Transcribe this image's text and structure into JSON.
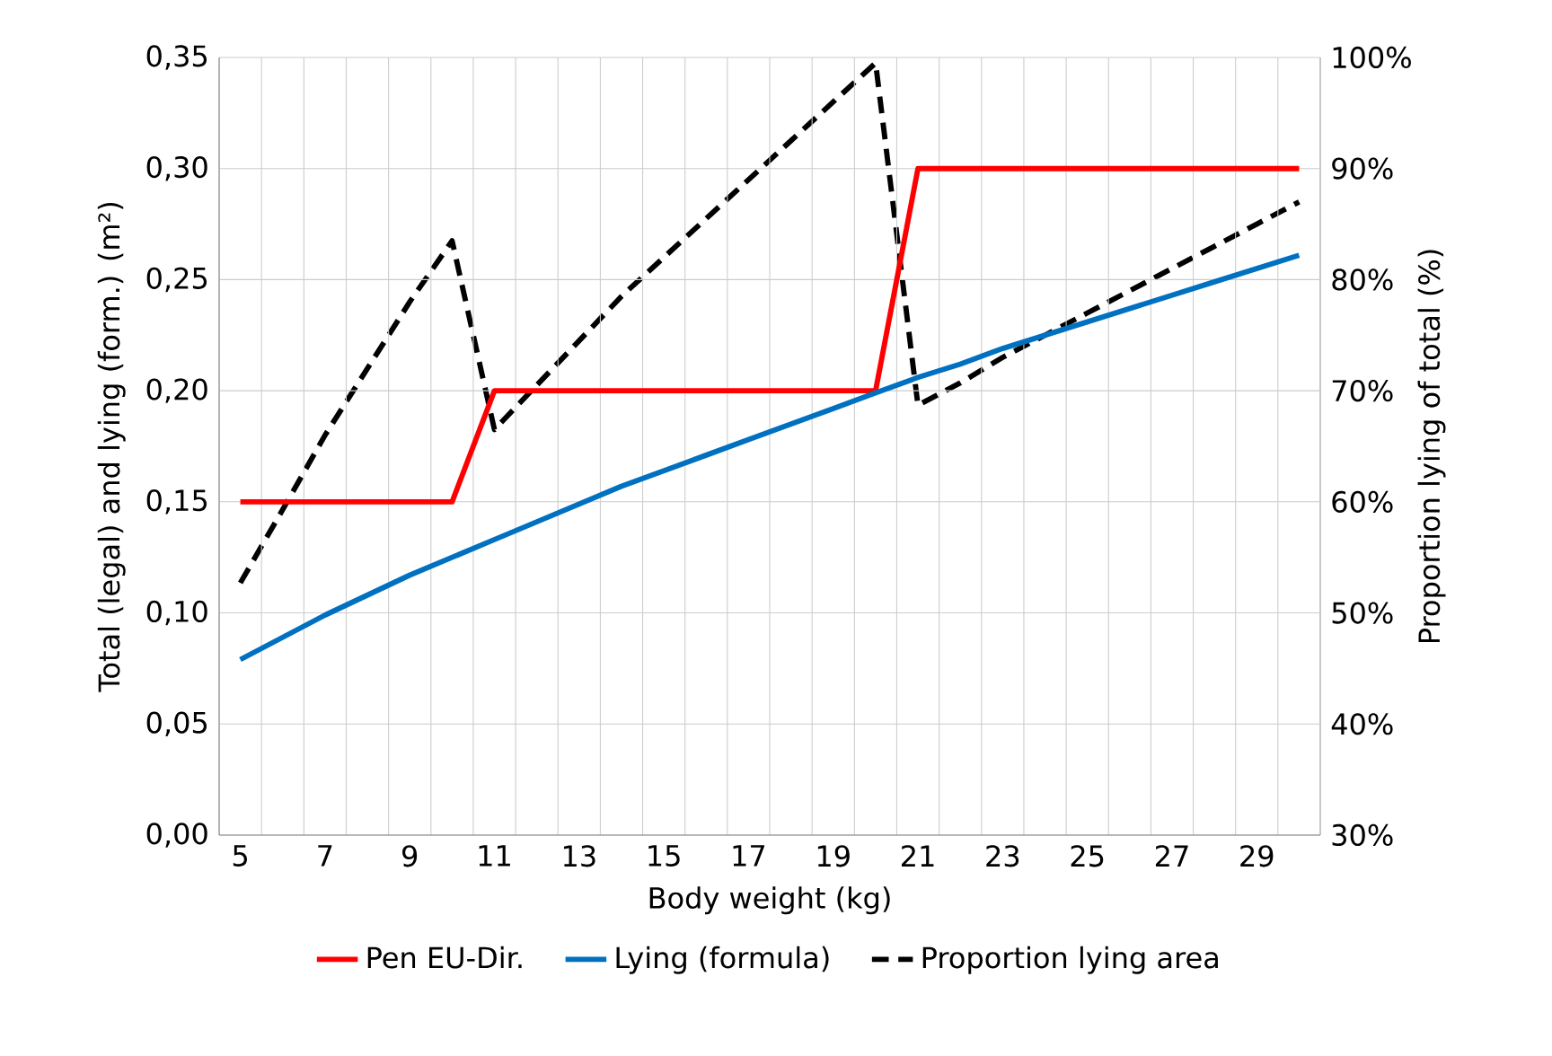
{
  "chart_data": {
    "type": "line",
    "xlabel": "Body weight (kg)",
    "ylabel": "Total (legal) and lying (form.) (m²)",
    "y2label": "Proportion lying of total (%)",
    "categories": [
      "5",
      null,
      "7",
      null,
      "9",
      null,
      "11",
      null,
      "13",
      null,
      "15",
      null,
      "17",
      null,
      "19",
      null,
      "21",
      null,
      "23",
      null,
      "25",
      null,
      "27",
      null,
      "29",
      null
    ],
    "series": [
      {
        "name": "Pen EU-Dir.",
        "color": "#ff0000",
        "values": [
          0.15,
          0.15,
          0.15,
          0.15,
          0.15,
          0.15,
          0.2,
          0.2,
          0.2,
          0.2,
          0.2,
          0.2,
          0.2,
          0.2,
          0.2,
          0.2,
          0.3,
          0.3,
          0.3,
          0.3,
          0.3,
          0.3,
          0.3,
          0.3,
          0.3,
          0.3
        ]
      },
      {
        "name": "Lying (formula)",
        "color": "#0070c0",
        "values": [
          0.079,
          0.089,
          0.099,
          0.108,
          0.117,
          0.125,
          0.133,
          0.141,
          0.149,
          0.157,
          0.164,
          0.171,
          0.178,
          0.185,
          0.192,
          0.199,
          0.206,
          0.212,
          0.219,
          0.225,
          0.231,
          0.237,
          0.243,
          0.249,
          0.255,
          0.261
        ]
      },
      {
        "name": "Proportion lying area",
        "color": "#000000",
        "axis": "y2",
        "line_style": "dashed",
        "values": [
          52.7,
          59.3,
          66,
          72,
          78,
          83.5,
          66.5,
          70.5,
          74.5,
          78.5,
          82,
          85.5,
          89,
          92.5,
          96,
          99.5,
          68.7,
          70.7,
          73,
          75,
          77,
          79,
          81,
          83,
          85,
          87
        ]
      }
    ],
    "ylim": [
      0,
      0.35
    ],
    "yticks": [
      {
        "value": 0,
        "label": "0,00"
      },
      {
        "value": 0.05,
        "label": "0,05"
      },
      {
        "value": 0.1,
        "label": "0,10"
      },
      {
        "value": 0.15,
        "label": "0,15"
      },
      {
        "value": 0.2,
        "label": "0,20"
      },
      {
        "value": 0.25,
        "label": "0,25"
      },
      {
        "value": 0.3,
        "label": "0,30"
      },
      {
        "value": 0.35,
        "label": "0,35"
      }
    ],
    "y2lim": [
      30,
      100
    ],
    "y2ticks": [
      {
        "value": 30,
        "label": "30%"
      },
      {
        "value": 40,
        "label": "40%"
      },
      {
        "value": 50,
        "label": "50%"
      },
      {
        "value": 60,
        "label": "60%"
      },
      {
        "value": 70,
        "label": "70%"
      },
      {
        "value": 80,
        "label": "80%"
      },
      {
        "value": 90,
        "label": "90%"
      },
      {
        "value": 100,
        "label": "100%"
      }
    ],
    "grid": true,
    "legend": "bottom",
    "line_style": "solid",
    "marker": "none"
  }
}
